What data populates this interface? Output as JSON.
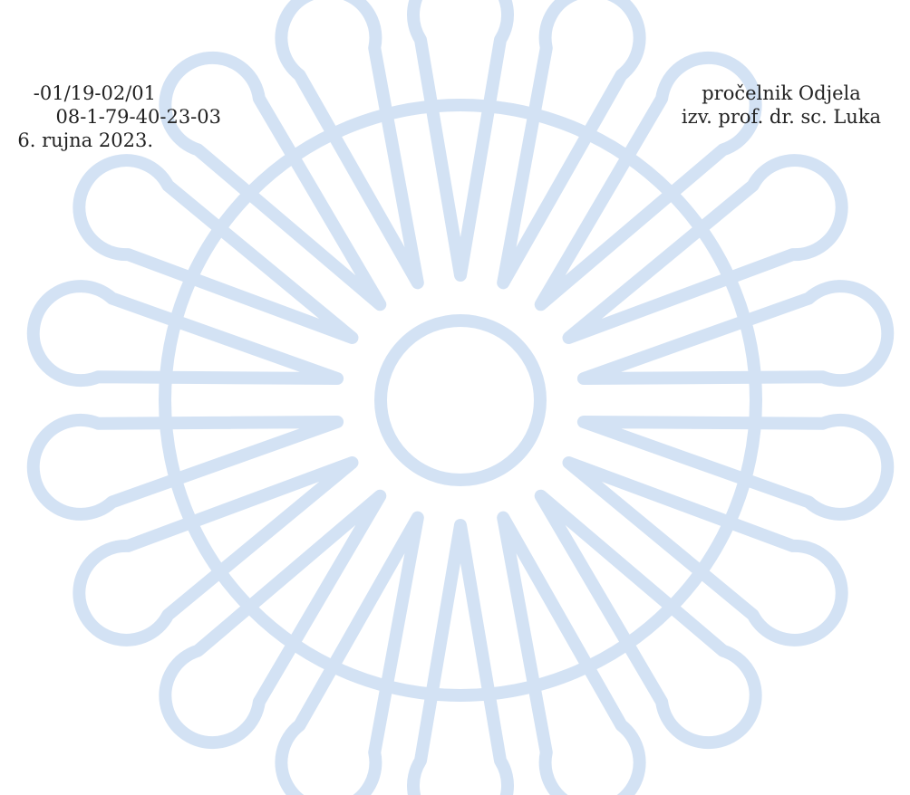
{
  "document": {
    "left_lines": [
      "-01/19-02/01",
      "08-1-79-40-23-03",
      "6. rujna 2023."
    ],
    "right_lines": [
      "pročelnik Odjela",
      "izv. prof. dr. sc. Luka"
    ]
  }
}
